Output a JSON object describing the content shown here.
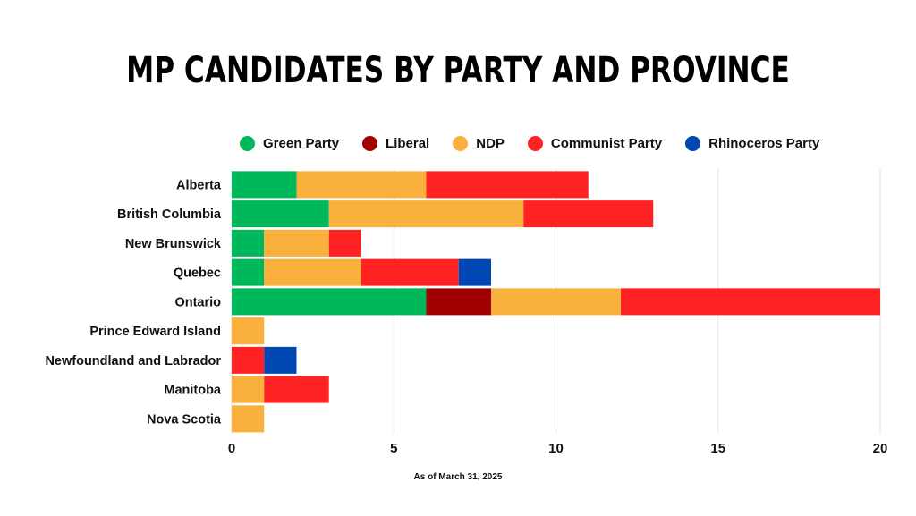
{
  "chart_data": {
    "type": "bar",
    "orientation": "horizontal",
    "stacked": true,
    "title": "MP CANDIDATES BY PARTY AND PROVINCE",
    "caption": "As of March 31, 2025",
    "categories": [
      "Alberta",
      "British Columbia",
      "New Brunswick",
      "Quebec",
      "Ontario",
      "Prince Edward Island",
      "Newfoundland and Labrador",
      "Manitoba",
      "Nova Scotia"
    ],
    "series": [
      {
        "name": "Green Party",
        "color": "#00b85c",
        "values": [
          2,
          3,
          1,
          1,
          6,
          0,
          0,
          0,
          0
        ]
      },
      {
        "name": "Liberal",
        "color": "#a00000",
        "values": [
          0,
          0,
          0,
          0,
          2,
          0,
          0,
          0,
          0
        ]
      },
      {
        "name": "NDP",
        "color": "#f9b03d",
        "values": [
          4,
          6,
          2,
          3,
          4,
          1,
          0,
          1,
          1
        ]
      },
      {
        "name": "Communist Party",
        "color": "#ff2222",
        "values": [
          5,
          4,
          1,
          3,
          8,
          0,
          1,
          2,
          0
        ]
      },
      {
        "name": "Rhinoceros Party",
        "color": "#0047b3",
        "values": [
          0,
          0,
          0,
          1,
          0,
          0,
          1,
          0,
          0
        ]
      }
    ],
    "xlim": [
      0,
      20
    ],
    "xticks": [
      0,
      5,
      10,
      15,
      20
    ],
    "grid": true,
    "legend_position": "top"
  }
}
